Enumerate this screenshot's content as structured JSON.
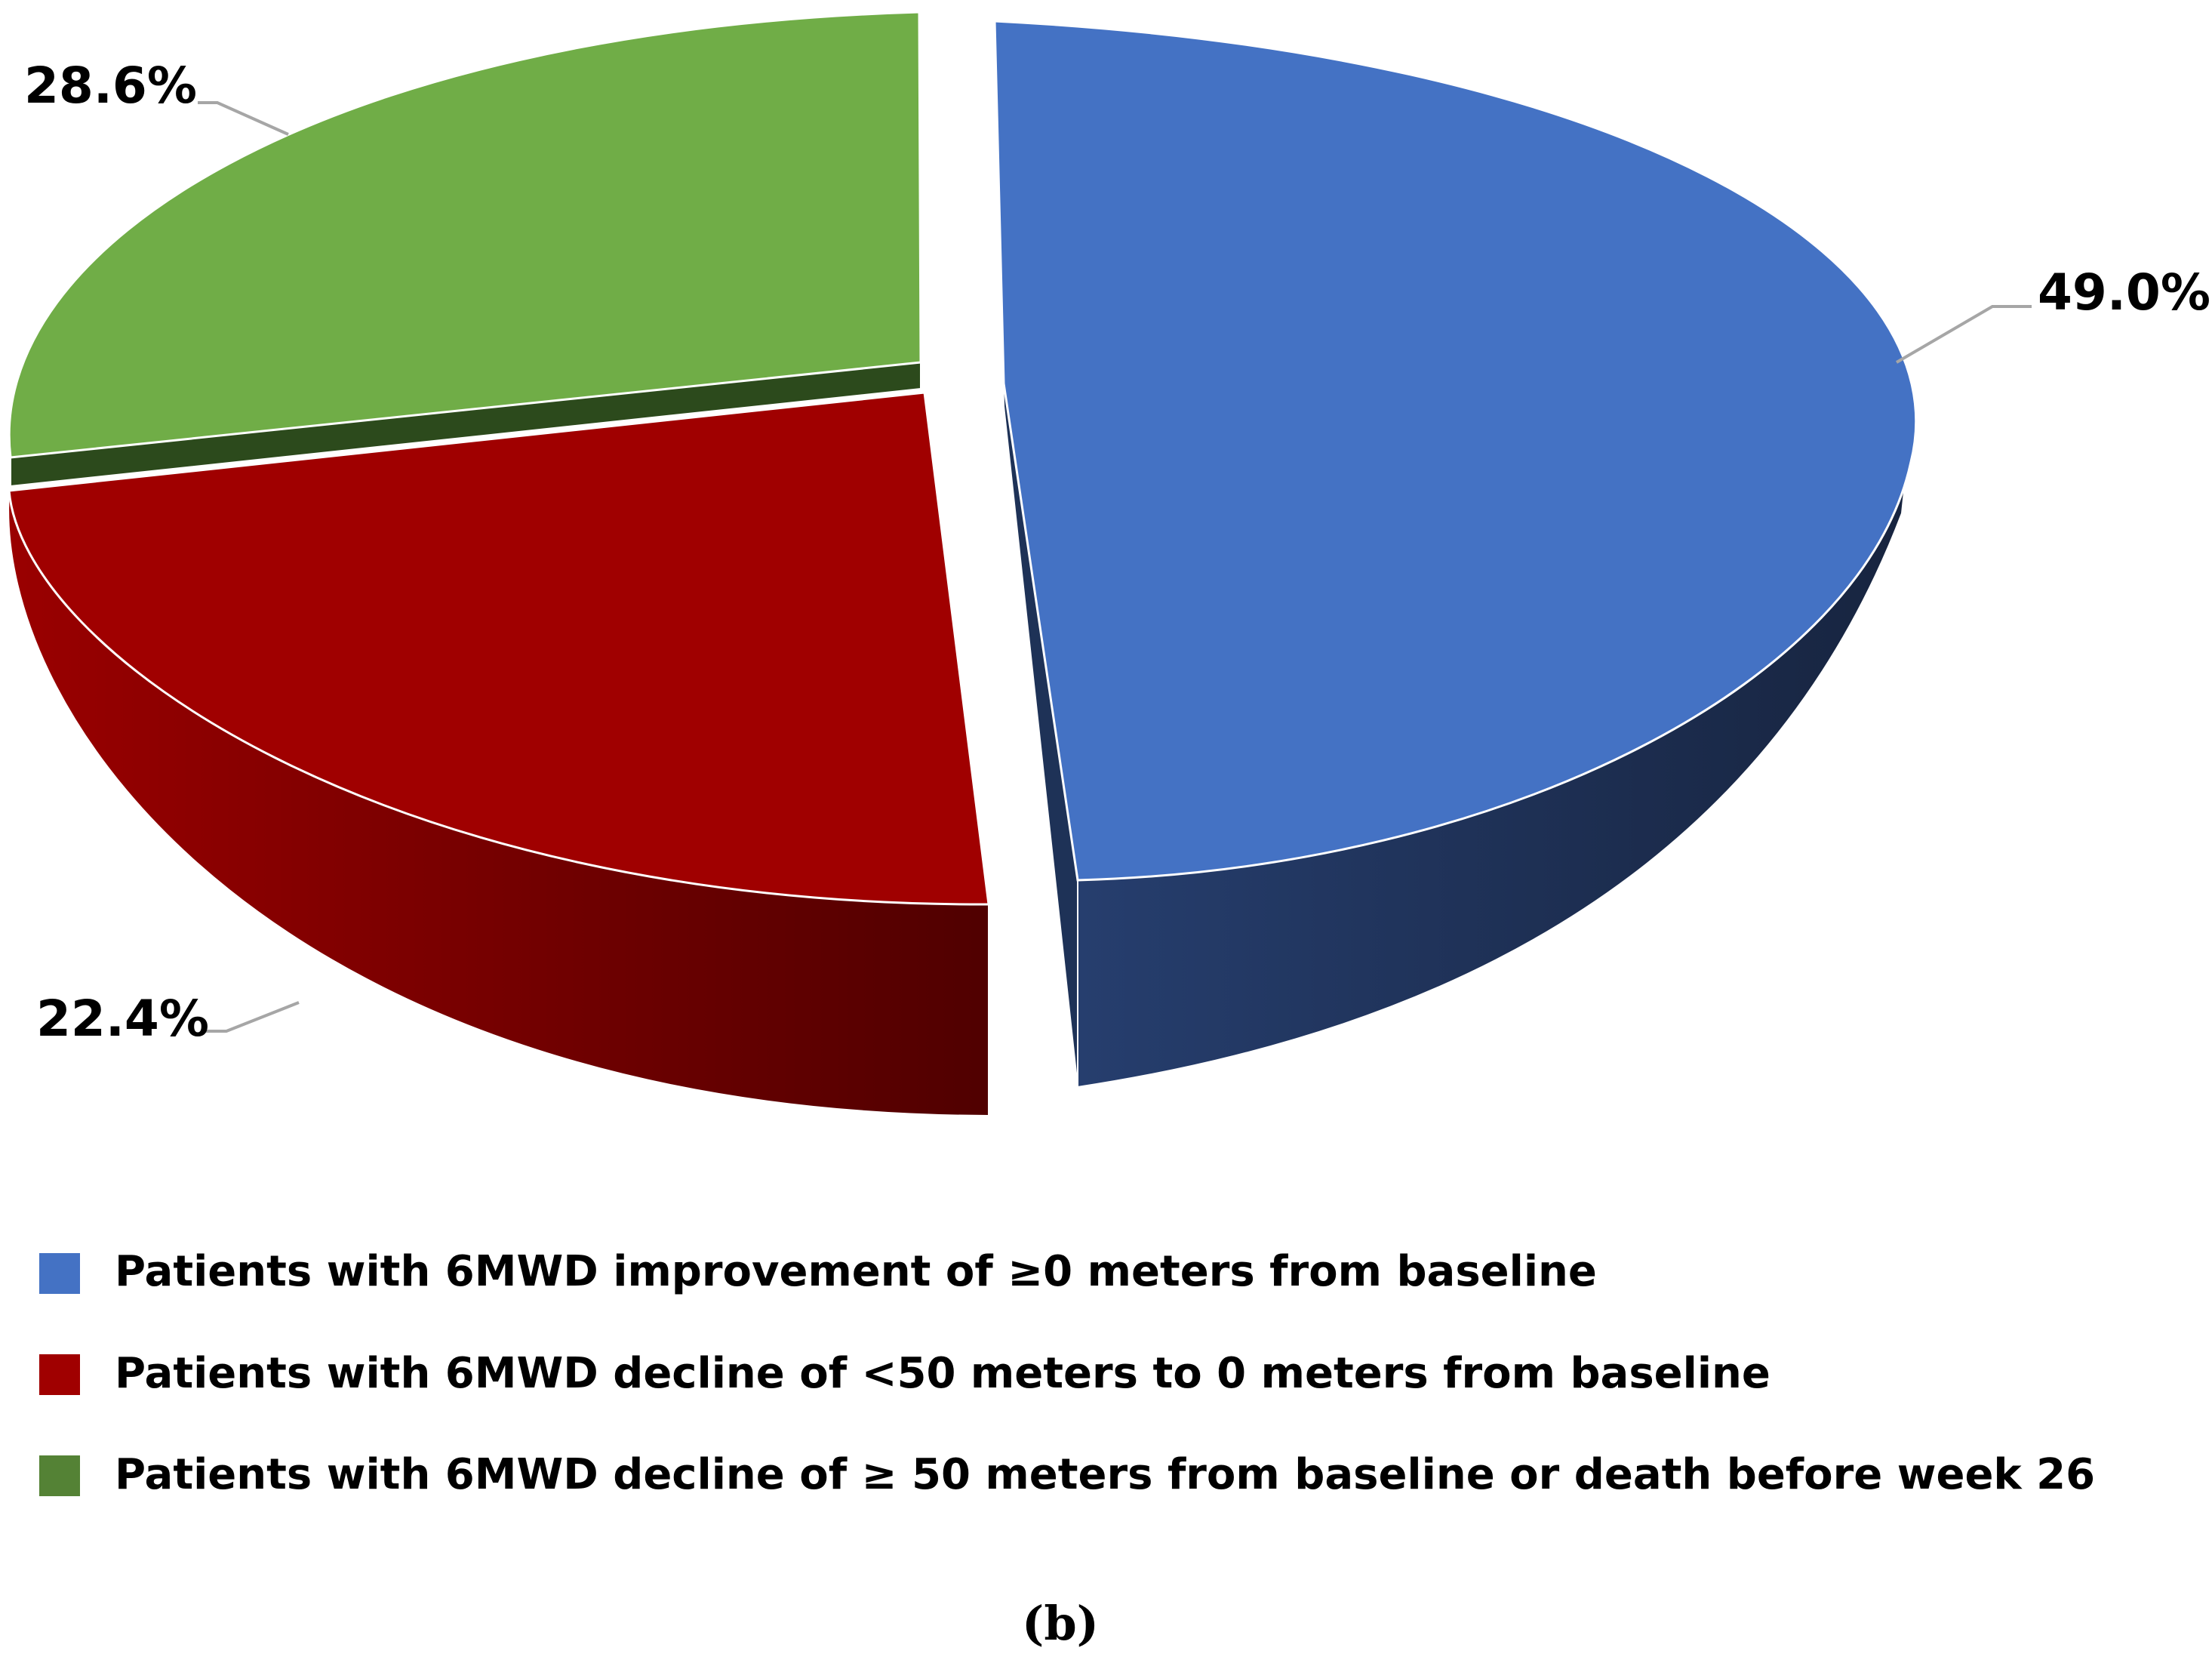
{
  "chart_data": {
    "type": "pie",
    "style": "3d-exploded",
    "categories": [
      "Patients with 6MWD improvement of ≥0 meters from baseline",
      "Patients with 6MWD decline of <50 meters to 0 meters from baseline",
      "Patients with 6MWD decline of ≥ 50 meters from baseline or death before week 26"
    ],
    "values": [
      49.0,
      22.4,
      28.6
    ],
    "value_labels": [
      "49.0%",
      "22.4%",
      "28.6%"
    ],
    "colors": [
      "#4472C4",
      "#A00000",
      "#70AD47"
    ],
    "side_colors": [
      "#1C2E52",
      "#6A0000",
      "#2C4A1C"
    ],
    "legend": {
      "position": "bottom"
    },
    "title": "",
    "xlabel": "",
    "ylabel": ""
  },
  "caption": "(b)"
}
